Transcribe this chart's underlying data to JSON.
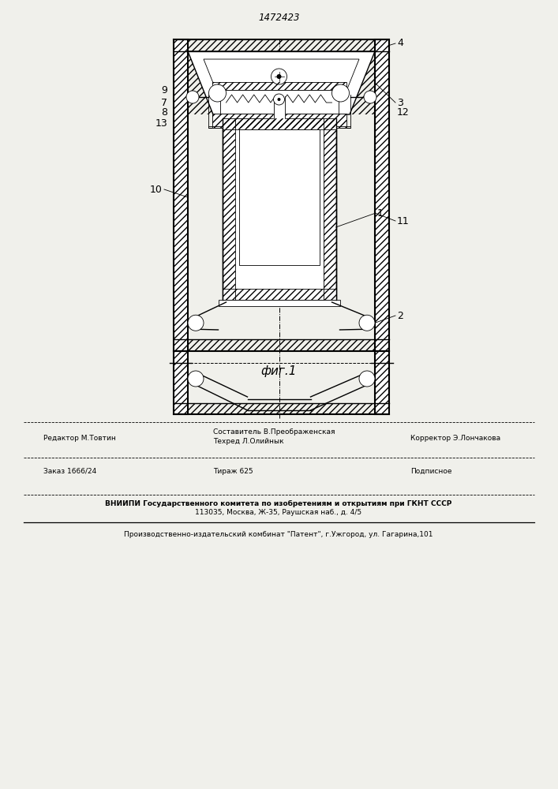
{
  "patent_number": "1472423",
  "fig_label": "фиг.1",
  "bg": "#f0f0eb",
  "lc": "#000000",
  "footer": {
    "col1": "Редактор М.Товтин",
    "col2a": "Составитель В.Преображенская",
    "col2b": "Техред Л.Олийнык",
    "col3": "Корректор Э.Лончакова",
    "order": "Заказ 1666/24",
    "tirazh": "Тираж 625",
    "podp": "Подписное",
    "vnipi1": "ВНИИПИ Государственного комитета по изобретениям и открытиям при ГКНТ СССР",
    "vnipi2": "113035, Москва, Ж-35, Раушская наб., д. 4/5",
    "prod": "Производственно-издательский комбинат \"Патент\", г.Ужгород, ул. Гагарина,101"
  }
}
